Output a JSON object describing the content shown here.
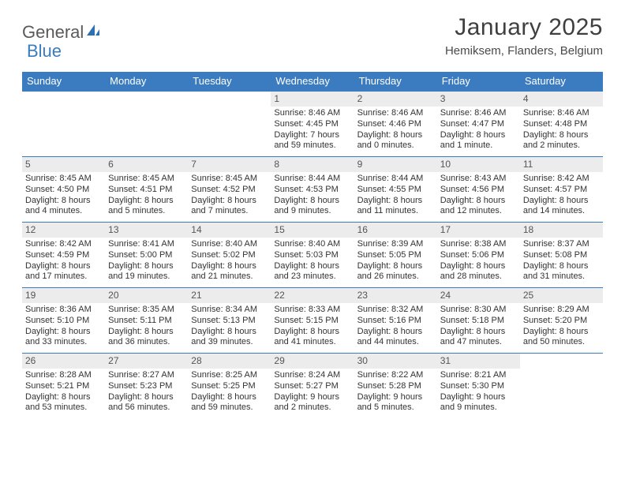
{
  "logo": {
    "text_general": "General",
    "text_blue": "Blue"
  },
  "title": "January 2025",
  "location": "Hemiksem, Flanders, Belgium",
  "colors": {
    "header_bar": "#3b7bbf",
    "header_text": "#ffffff",
    "daynum_bg": "#ececec",
    "row_border": "#3b7bbf",
    "body_text": "#333333",
    "title_text": "#3f3f3f",
    "background": "#ffffff"
  },
  "day_names": [
    "Sunday",
    "Monday",
    "Tuesday",
    "Wednesday",
    "Thursday",
    "Friday",
    "Saturday"
  ],
  "labels": {
    "sunrise": "Sunrise:",
    "sunset": "Sunset:",
    "daylight": "Daylight:"
  },
  "weeks": [
    [
      {
        "blank": true
      },
      {
        "blank": true
      },
      {
        "blank": true
      },
      {
        "n": "1",
        "sunrise": "8:46 AM",
        "sunset": "4:45 PM",
        "dl1": "7 hours",
        "dl2": "and 59 minutes."
      },
      {
        "n": "2",
        "sunrise": "8:46 AM",
        "sunset": "4:46 PM",
        "dl1": "8 hours",
        "dl2": "and 0 minutes."
      },
      {
        "n": "3",
        "sunrise": "8:46 AM",
        "sunset": "4:47 PM",
        "dl1": "8 hours",
        "dl2": "and 1 minute."
      },
      {
        "n": "4",
        "sunrise": "8:46 AM",
        "sunset": "4:48 PM",
        "dl1": "8 hours",
        "dl2": "and 2 minutes."
      }
    ],
    [
      {
        "n": "5",
        "sunrise": "8:45 AM",
        "sunset": "4:50 PM",
        "dl1": "8 hours",
        "dl2": "and 4 minutes."
      },
      {
        "n": "6",
        "sunrise": "8:45 AM",
        "sunset": "4:51 PM",
        "dl1": "8 hours",
        "dl2": "and 5 minutes."
      },
      {
        "n": "7",
        "sunrise": "8:45 AM",
        "sunset": "4:52 PM",
        "dl1": "8 hours",
        "dl2": "and 7 minutes."
      },
      {
        "n": "8",
        "sunrise": "8:44 AM",
        "sunset": "4:53 PM",
        "dl1": "8 hours",
        "dl2": "and 9 minutes."
      },
      {
        "n": "9",
        "sunrise": "8:44 AM",
        "sunset": "4:55 PM",
        "dl1": "8 hours",
        "dl2": "and 11 minutes."
      },
      {
        "n": "10",
        "sunrise": "8:43 AM",
        "sunset": "4:56 PM",
        "dl1": "8 hours",
        "dl2": "and 12 minutes."
      },
      {
        "n": "11",
        "sunrise": "8:42 AM",
        "sunset": "4:57 PM",
        "dl1": "8 hours",
        "dl2": "and 14 minutes."
      }
    ],
    [
      {
        "n": "12",
        "sunrise": "8:42 AM",
        "sunset": "4:59 PM",
        "dl1": "8 hours",
        "dl2": "and 17 minutes."
      },
      {
        "n": "13",
        "sunrise": "8:41 AM",
        "sunset": "5:00 PM",
        "dl1": "8 hours",
        "dl2": "and 19 minutes."
      },
      {
        "n": "14",
        "sunrise": "8:40 AM",
        "sunset": "5:02 PM",
        "dl1": "8 hours",
        "dl2": "and 21 minutes."
      },
      {
        "n": "15",
        "sunrise": "8:40 AM",
        "sunset": "5:03 PM",
        "dl1": "8 hours",
        "dl2": "and 23 minutes."
      },
      {
        "n": "16",
        "sunrise": "8:39 AM",
        "sunset": "5:05 PM",
        "dl1": "8 hours",
        "dl2": "and 26 minutes."
      },
      {
        "n": "17",
        "sunrise": "8:38 AM",
        "sunset": "5:06 PM",
        "dl1": "8 hours",
        "dl2": "and 28 minutes."
      },
      {
        "n": "18",
        "sunrise": "8:37 AM",
        "sunset": "5:08 PM",
        "dl1": "8 hours",
        "dl2": "and 31 minutes."
      }
    ],
    [
      {
        "n": "19",
        "sunrise": "8:36 AM",
        "sunset": "5:10 PM",
        "dl1": "8 hours",
        "dl2": "and 33 minutes."
      },
      {
        "n": "20",
        "sunrise": "8:35 AM",
        "sunset": "5:11 PM",
        "dl1": "8 hours",
        "dl2": "and 36 minutes."
      },
      {
        "n": "21",
        "sunrise": "8:34 AM",
        "sunset": "5:13 PM",
        "dl1": "8 hours",
        "dl2": "and 39 minutes."
      },
      {
        "n": "22",
        "sunrise": "8:33 AM",
        "sunset": "5:15 PM",
        "dl1": "8 hours",
        "dl2": "and 41 minutes."
      },
      {
        "n": "23",
        "sunrise": "8:32 AM",
        "sunset": "5:16 PM",
        "dl1": "8 hours",
        "dl2": "and 44 minutes."
      },
      {
        "n": "24",
        "sunrise": "8:30 AM",
        "sunset": "5:18 PM",
        "dl1": "8 hours",
        "dl2": "and 47 minutes."
      },
      {
        "n": "25",
        "sunrise": "8:29 AM",
        "sunset": "5:20 PM",
        "dl1": "8 hours",
        "dl2": "and 50 minutes."
      }
    ],
    [
      {
        "n": "26",
        "sunrise": "8:28 AM",
        "sunset": "5:21 PM",
        "dl1": "8 hours",
        "dl2": "and 53 minutes."
      },
      {
        "n": "27",
        "sunrise": "8:27 AM",
        "sunset": "5:23 PM",
        "dl1": "8 hours",
        "dl2": "and 56 minutes."
      },
      {
        "n": "28",
        "sunrise": "8:25 AM",
        "sunset": "5:25 PM",
        "dl1": "8 hours",
        "dl2": "and 59 minutes."
      },
      {
        "n": "29",
        "sunrise": "8:24 AM",
        "sunset": "5:27 PM",
        "dl1": "9 hours",
        "dl2": "and 2 minutes."
      },
      {
        "n": "30",
        "sunrise": "8:22 AM",
        "sunset": "5:28 PM",
        "dl1": "9 hours",
        "dl2": "and 5 minutes."
      },
      {
        "n": "31",
        "sunrise": "8:21 AM",
        "sunset": "5:30 PM",
        "dl1": "9 hours",
        "dl2": "and 9 minutes."
      },
      {
        "blank": true
      }
    ]
  ]
}
